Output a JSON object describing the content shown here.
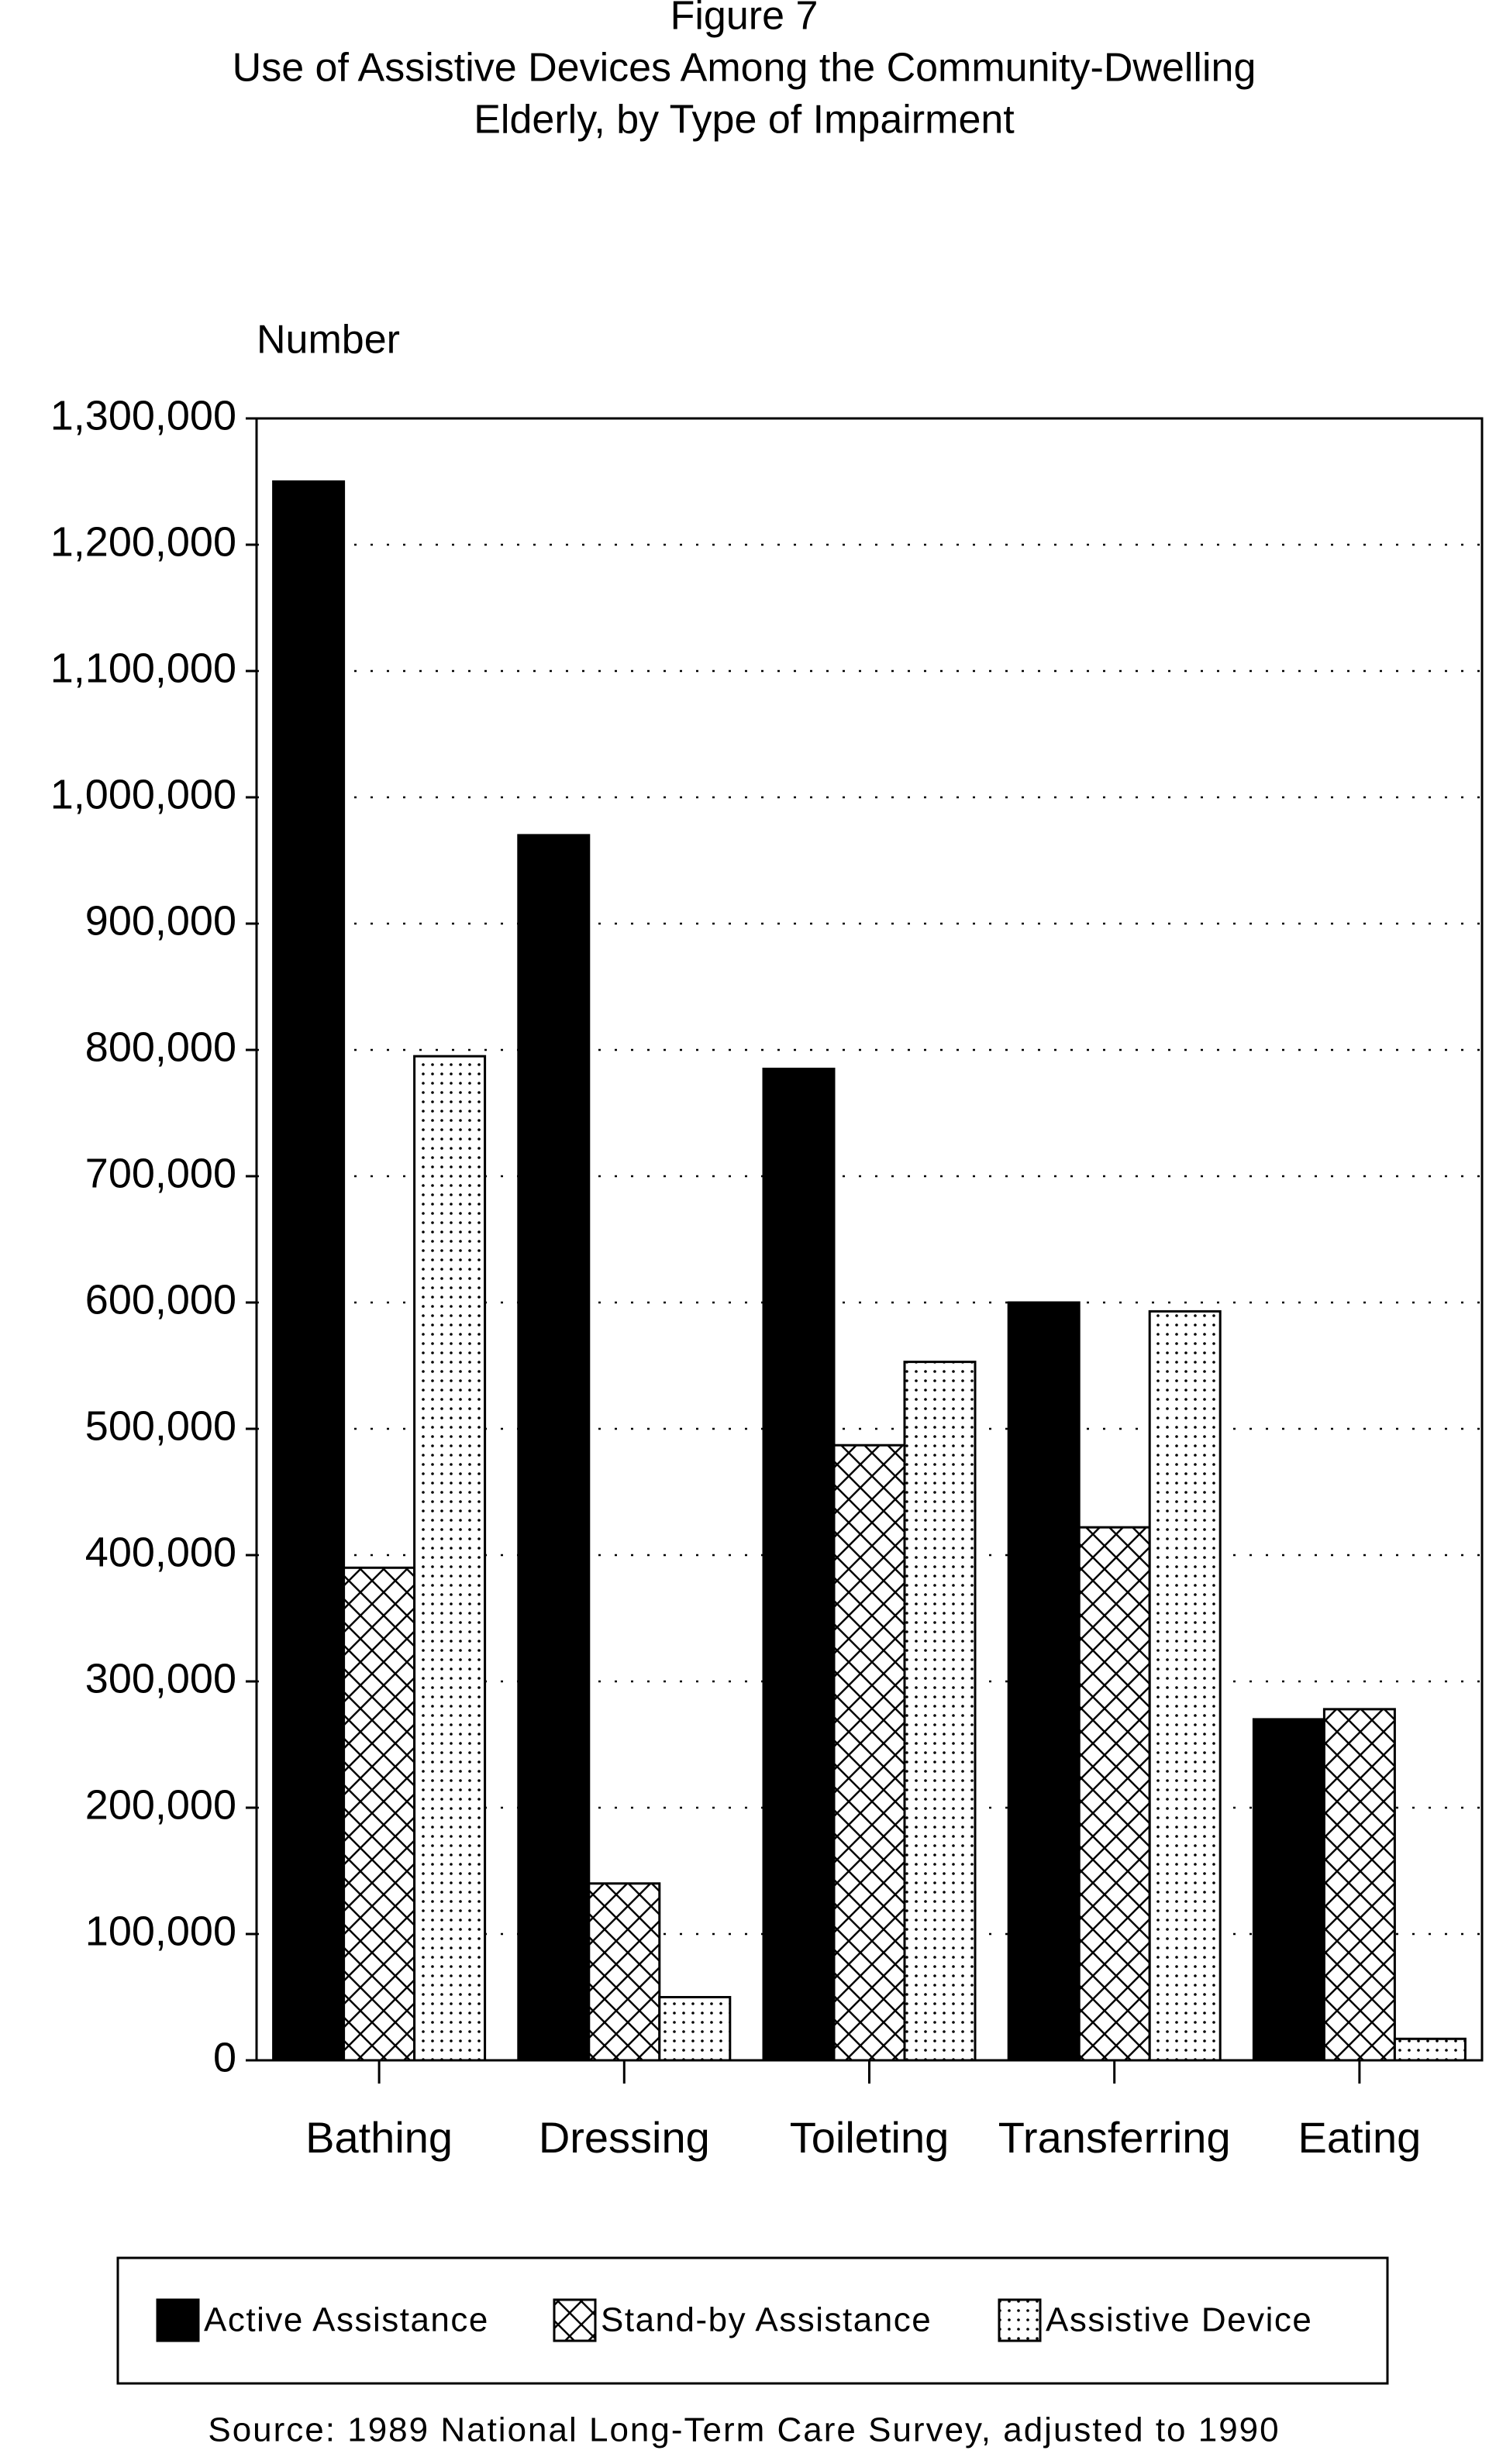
{
  "chart_data": {
    "type": "bar",
    "title": "Figure 7",
    "subtitle": [
      "Use of Assistive Devices Among the Community-Dwelling",
      "Elderly, by Type of Impairment"
    ],
    "y_label": "Number",
    "categories": [
      "Bathing",
      "Dressing",
      "Toileting",
      "Transferring",
      "Eating"
    ],
    "series": [
      {
        "name": "Active Assistance",
        "color": "#000000",
        "pattern": "solid",
        "values": [
          1250000,
          970000,
          785000,
          600000,
          270000
        ]
      },
      {
        "name": "Stand-by Assistance",
        "color": "#000000",
        "pattern": "crosshatch",
        "values": [
          390000,
          140000,
          487000,
          422000,
          278000
        ]
      },
      {
        "name": "Assistive Device",
        "color": "#000000",
        "pattern": "dots",
        "values": [
          795000,
          50000,
          553000,
          593000,
          17000
        ]
      }
    ],
    "ylim": [
      0,
      1300000
    ],
    "yticks": [
      0,
      {
        "value": 100000,
        "label": "100,000"
      },
      {
        "value": 200000,
        "label": "200,000"
      },
      {
        "value": 300000,
        "label": "300,000"
      },
      {
        "value": 400000,
        "label": "400,000"
      },
      {
        "value": 500000,
        "label": "500,000"
      },
      {
        "value": 600000,
        "label": "600,000"
      },
      {
        "value": 700000,
        "label": "700,000"
      },
      {
        "value": 800000,
        "label": "800,000"
      },
      {
        "value": 900000,
        "label": "900,000"
      },
      {
        "value": 1000000,
        "label": "1,000,000"
      },
      {
        "value": 1100000,
        "label": "1,100,000"
      },
      {
        "value": 1200000,
        "label": "1,200,000"
      },
      {
        "value": 1300000,
        "label": "1,300,000"
      }
    ],
    "grid": true,
    "legend": "bottom",
    "source": "Source:  1989 National Long-Term Care Survey, adjusted to 1990"
  }
}
